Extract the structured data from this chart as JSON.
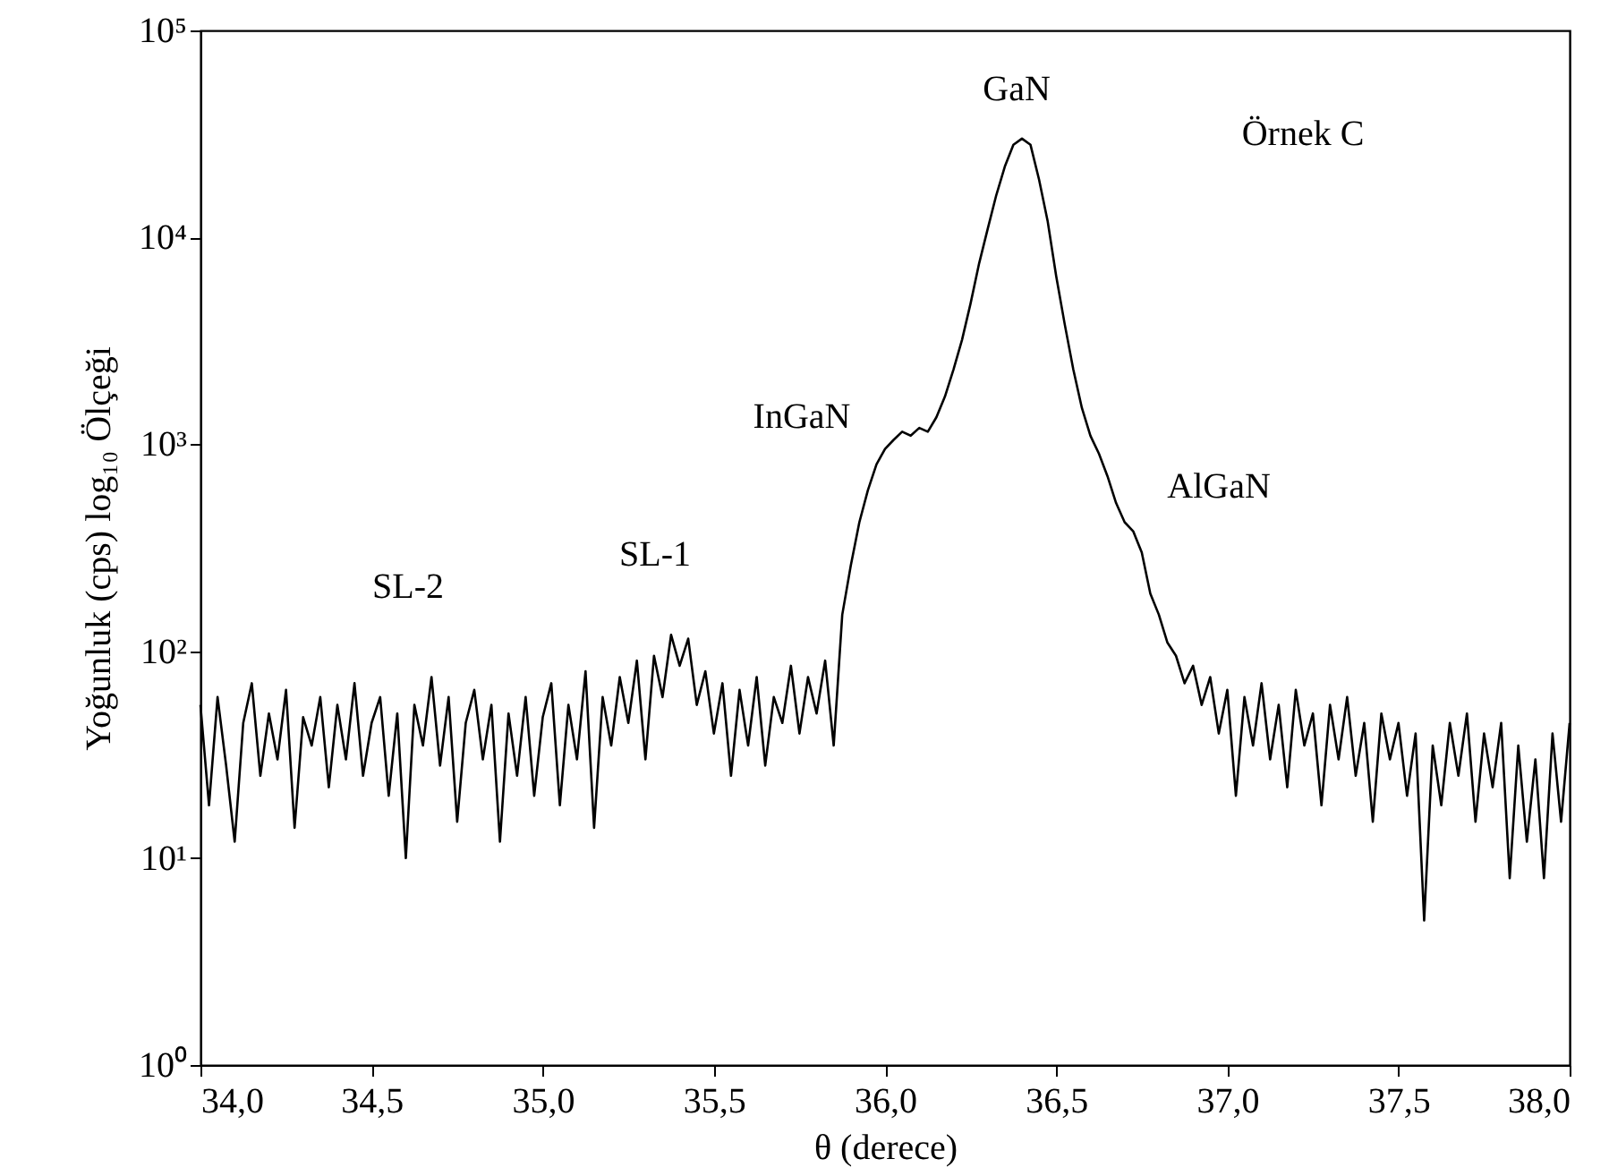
{
  "chart_data": {
    "type": "line",
    "xlabel": "θ (derece)",
    "ylabel": "Yoğunluk (cps)  log₁₀ Ölçeği",
    "log": true,
    "grid": false,
    "xlim": [
      34,
      38
    ],
    "ylim": [
      1,
      100000
    ],
    "xticks": [
      {
        "value": 34,
        "label": "34,0"
      },
      {
        "value": 34.5,
        "label": "34,5"
      },
      {
        "value": 35,
        "label": "35,0"
      },
      {
        "value": 35.5,
        "label": "35,5"
      },
      {
        "value": 36,
        "label": "36,0"
      },
      {
        "value": 36.5,
        "label": "36,5"
      },
      {
        "value": 37,
        "label": "37,0"
      },
      {
        "value": 37.5,
        "label": "37,5"
      },
      {
        "value": 38,
        "label": "38,0"
      }
    ],
    "yticks": [
      {
        "value": 1,
        "label": "10⁰"
      },
      {
        "value": 10,
        "label": "10¹"
      },
      {
        "value": 100,
        "label": "10²"
      },
      {
        "value": 1000,
        "label": "10³"
      },
      {
        "value": 10000,
        "label": "10⁴"
      },
      {
        "value": 100000,
        "label": "10⁵"
      }
    ],
    "x": [
      34,
      34.025,
      34.05,
      34.075,
      34.1,
      34.125,
      34.15,
      34.175,
      34.2,
      34.225,
      34.25,
      34.275,
      34.3,
      34.325,
      34.35,
      34.375,
      34.4,
      34.425,
      34.45,
      34.475,
      34.5,
      34.525,
      34.55,
      34.575,
      34.6,
      34.625,
      34.65,
      34.675,
      34.7,
      34.725,
      34.75,
      34.775,
      34.8,
      34.825,
      34.85,
      34.875,
      34.9,
      34.925,
      34.95,
      34.975,
      35,
      35.025,
      35.05,
      35.075,
      35.1,
      35.125,
      35.15,
      35.175,
      35.2,
      35.225,
      35.25,
      35.275,
      35.3,
      35.325,
      35.35,
      35.375,
      35.4,
      35.425,
      35.45,
      35.475,
      35.5,
      35.525,
      35.55,
      35.575,
      35.6,
      35.625,
      35.65,
      35.675,
      35.7,
      35.725,
      35.75,
      35.775,
      35.8,
      35.825,
      35.85,
      35.875,
      35.9,
      35.925,
      35.95,
      35.975,
      36,
      36.025,
      36.05,
      36.075,
      36.1,
      36.125,
      36.15,
      36.175,
      36.2,
      36.225,
      36.25,
      36.275,
      36.3,
      36.325,
      36.35,
      36.375,
      36.4,
      36.425,
      36.45,
      36.475,
      36.5,
      36.525,
      36.55,
      36.575,
      36.6,
      36.625,
      36.65,
      36.675,
      36.7,
      36.725,
      36.75,
      36.775,
      36.8,
      36.825,
      36.85,
      36.875,
      36.9,
      36.925,
      36.95,
      36.975,
      37,
      37.025,
      37.05,
      37.075,
      37.1,
      37.125,
      37.15,
      37.175,
      37.2,
      37.225,
      37.25,
      37.275,
      37.3,
      37.325,
      37.35,
      37.375,
      37.4,
      37.425,
      37.45,
      37.475,
      37.5,
      37.525,
      37.55,
      37.575,
      37.6,
      37.625,
      37.65,
      37.675,
      37.7,
      37.725,
      37.75,
      37.775,
      37.8,
      37.825,
      37.85,
      37.875,
      37.9,
      37.925,
      37.95,
      37.975,
      38
    ],
    "series": [
      {
        "color": "#000000",
        "values": [
          55,
          18,
          60,
          28,
          12,
          45,
          70,
          25,
          50,
          30,
          65,
          14,
          48,
          35,
          60,
          22,
          55,
          30,
          70,
          25,
          45,
          60,
          20,
          50,
          10,
          55,
          35,
          75,
          28,
          60,
          15,
          45,
          65,
          30,
          55,
          12,
          50,
          25,
          60,
          20,
          48,
          70,
          18,
          55,
          30,
          80,
          14,
          60,
          35,
          75,
          45,
          90,
          30,
          95,
          60,
          120,
          85,
          115,
          55,
          80,
          40,
          70,
          25,
          65,
          35,
          75,
          28,
          60,
          45,
          85,
          40,
          75,
          50,
          90,
          35,
          150,
          260,
          420,
          600,
          800,
          950,
          1050,
          1150,
          1100,
          1200,
          1150,
          1350,
          1700,
          2300,
          3200,
          4800,
          7500,
          11000,
          16000,
          22000,
          28000,
          30000,
          28000,
          19000,
          12000,
          6500,
          3800,
          2300,
          1500,
          1100,
          900,
          700,
          520,
          420,
          380,
          300,
          190,
          150,
          110,
          95,
          70,
          85,
          55,
          75,
          40,
          65,
          20,
          60,
          35,
          70,
          30,
          55,
          22,
          65,
          35,
          50,
          18,
          55,
          30,
          60,
          25,
          45,
          15,
          50,
          30,
          45,
          20,
          40,
          5,
          35,
          18,
          45,
          25,
          50,
          15,
          40,
          22,
          45,
          8,
          35,
          12,
          30,
          8,
          40,
          15,
          45
        ]
      }
    ],
    "annotations": [
      "GaN",
      "InGaN",
      "AlGaN",
      "SL-1",
      "SL-2",
      "Örnek C"
    ]
  }
}
